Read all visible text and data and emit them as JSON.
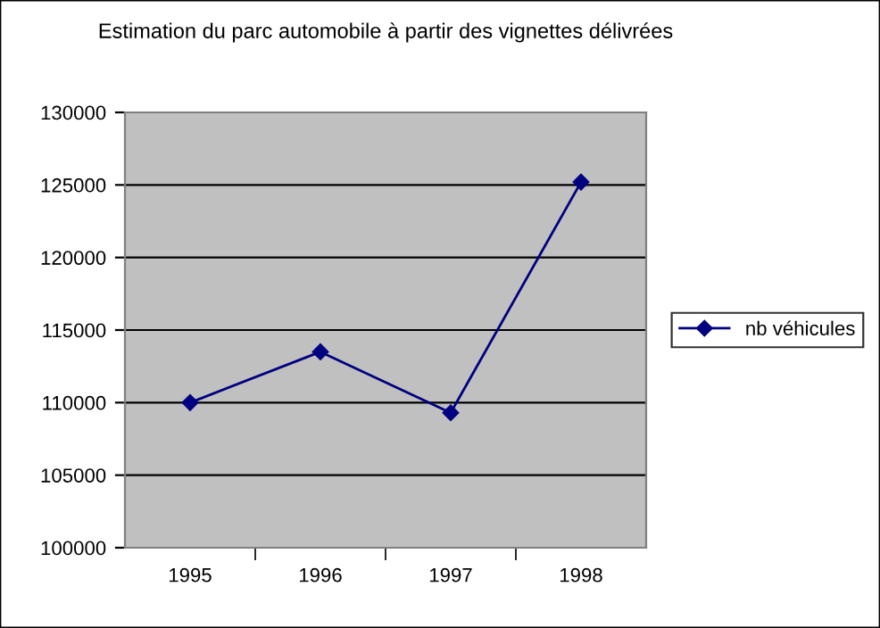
{
  "chart_data": {
    "type": "line",
    "title": "Estimation du parc automobile à partir des vignettes délivrées",
    "categories": [
      "1995",
      "1996",
      "1997",
      "1998"
    ],
    "series": [
      {
        "name": "nb véhicules",
        "color": "#000080",
        "values": [
          110000,
          113500,
          109300,
          125200
        ]
      }
    ],
    "ylim": [
      100000,
      130000
    ],
    "yticks": [
      100000,
      105000,
      110000,
      115000,
      120000,
      125000,
      130000
    ],
    "grid": "y",
    "legend": "right",
    "marker": "diamond",
    "line_style": "solid"
  }
}
